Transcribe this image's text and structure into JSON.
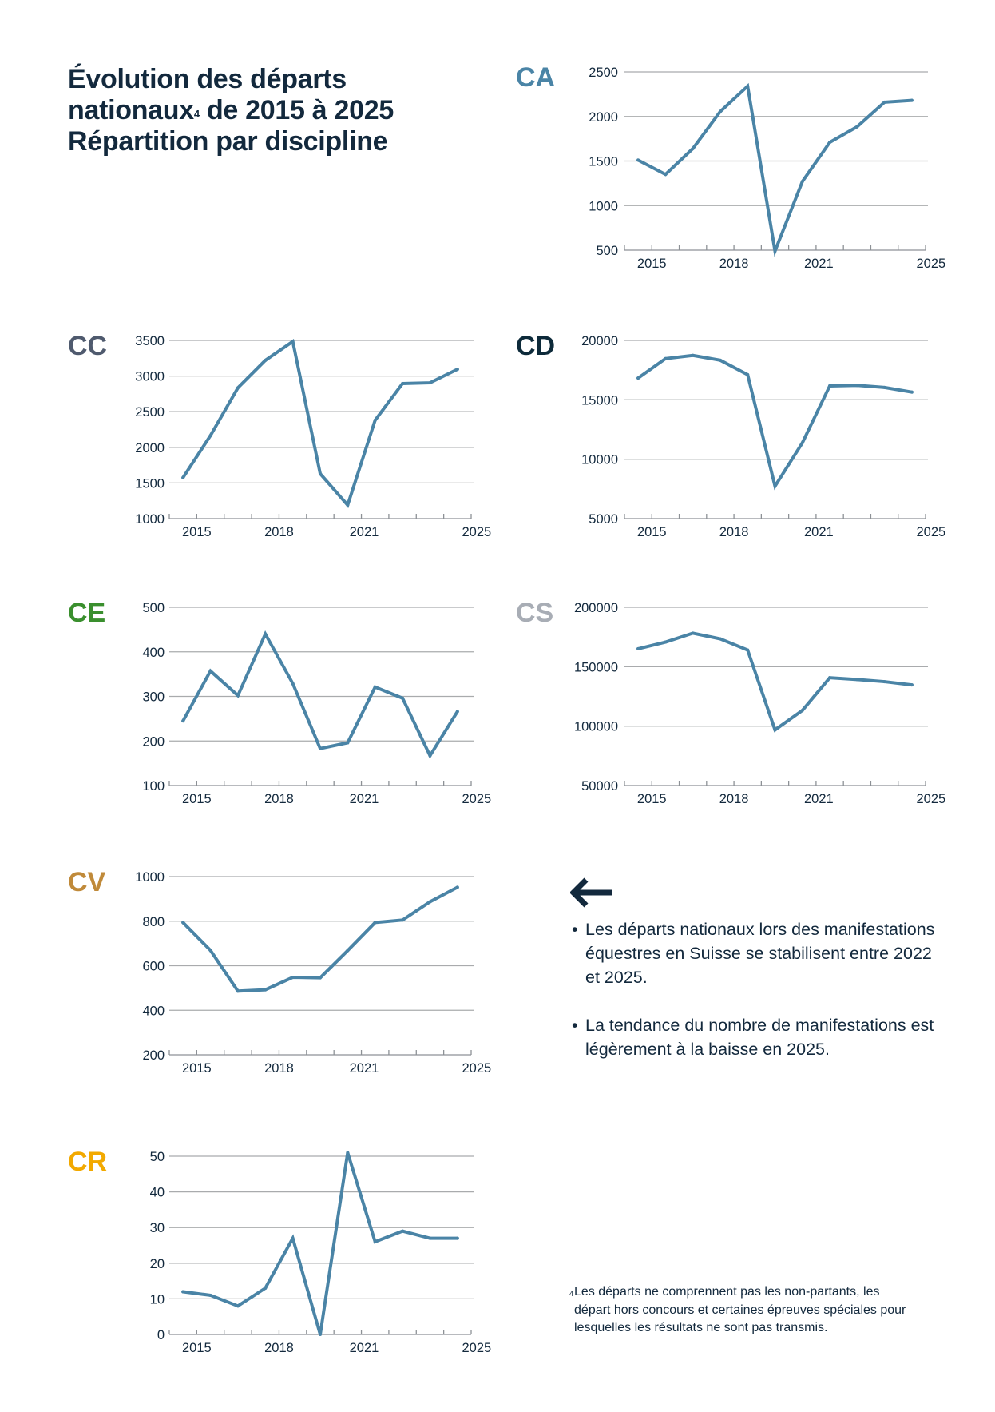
{
  "title": {
    "line1": "Évolution des départs",
    "line2_a": "nationaux",
    "line2_sup": "4",
    "line2_b": " de 2015 à 2025",
    "line3": "Répartition par discipline"
  },
  "line_color": "#4a84a6",
  "chart_data": [
    {
      "type": "line",
      "label": "CA",
      "label_color": "#4a84a6",
      "x": [
        2015,
        2016,
        2017,
        2018,
        2019,
        2020,
        2021,
        2022,
        2023,
        2024,
        2025
      ],
      "xtick_labels": [
        "2015",
        "2018",
        "2021",
        "2025"
      ],
      "yticks": [
        "500",
        "1000",
        "1500",
        "2000",
        "2500"
      ],
      "ylim": [
        500,
        2500
      ],
      "values": [
        1510,
        1350,
        1640,
        2055,
        2340,
        490,
        1270,
        1710,
        1885,
        2160,
        2180
      ],
      "grid": true
    },
    {
      "type": "line",
      "label": "CC",
      "label_color": "#4f5a6e",
      "x": [
        2015,
        2016,
        2017,
        2018,
        2019,
        2020,
        2021,
        2022,
        2023,
        2024,
        2025
      ],
      "xtick_labels": [
        "2015",
        "2018",
        "2021",
        "2025"
      ],
      "yticks": [
        "1000",
        "1500",
        "2000",
        "2500",
        "3000",
        "3500"
      ],
      "ylim": [
        1000,
        3500
      ],
      "values": [
        1575,
        2165,
        2835,
        3220,
        3485,
        1630,
        1190,
        2380,
        2895,
        2905,
        3095
      ],
      "grid": true
    },
    {
      "type": "line",
      "label": "CD",
      "label_color": "#0d2a3a",
      "x": [
        2015,
        2016,
        2017,
        2018,
        2019,
        2020,
        2021,
        2022,
        2023,
        2024,
        2025
      ],
      "xtick_labels": [
        "2015",
        "2018",
        "2021",
        "2025"
      ],
      "yticks": [
        "5000",
        "10000",
        "15000",
        "20000"
      ],
      "ylim": [
        5000,
        20000
      ],
      "values": [
        16830,
        18470,
        18740,
        18330,
        17120,
        7730,
        11380,
        16170,
        16220,
        16040,
        15650
      ],
      "grid": true
    },
    {
      "type": "line",
      "label": "CE",
      "label_color": "#3a8f2e",
      "x": [
        2015,
        2016,
        2017,
        2018,
        2019,
        2020,
        2021,
        2022,
        2023,
        2024,
        2025
      ],
      "xtick_labels": [
        "2015",
        "2018",
        "2021",
        "2025"
      ],
      "yticks": [
        "100",
        "200",
        "300",
        "400",
        "500"
      ],
      "ylim": [
        100,
        500
      ],
      "values": [
        245,
        357,
        302,
        440,
        329,
        183,
        196,
        321,
        296,
        167,
        266
      ],
      "grid": true
    },
    {
      "type": "line",
      "label": "CS",
      "label_color": "#a8adb5",
      "x": [
        2015,
        2016,
        2017,
        2018,
        2019,
        2020,
        2021,
        2022,
        2023,
        2024,
        2025
      ],
      "xtick_labels": [
        "2015",
        "2018",
        "2021",
        "2025"
      ],
      "yticks": [
        "50000",
        "100000",
        "150000",
        "200000"
      ],
      "ylim": [
        50000,
        200000
      ],
      "values": [
        165100,
        170700,
        178200,
        173400,
        164000,
        96800,
        113200,
        140700,
        139200,
        137400,
        134700
      ],
      "grid": true
    },
    {
      "type": "line",
      "label": "CV",
      "label_color": "#c08a3a",
      "x": [
        2015,
        2016,
        2017,
        2018,
        2019,
        2020,
        2021,
        2022,
        2023,
        2024,
        2025
      ],
      "xtick_labels": [
        "2015",
        "2018",
        "2021",
        "2025"
      ],
      "yticks": [
        "200",
        "400",
        "600",
        "800",
        "1000"
      ],
      "ylim": [
        200,
        1000
      ],
      "values": [
        794,
        669,
        486,
        492,
        548,
        546,
        668,
        794,
        805,
        887,
        952
      ],
      "grid": true
    },
    {
      "type": "line",
      "label": "CR",
      "label_color": "#f2a900",
      "x": [
        2015,
        2016,
        2017,
        2018,
        2019,
        2020,
        2021,
        2022,
        2023,
        2024,
        2025
      ],
      "xtick_labels": [
        "2015",
        "2018",
        "2021",
        "2025"
      ],
      "yticks": [
        "0",
        "10",
        "20",
        "30",
        "40",
        "50"
      ],
      "ylim": [
        0,
        50
      ],
      "values": [
        12,
        11,
        8,
        13,
        27,
        0,
        51,
        26,
        29,
        27,
        27
      ],
      "grid": true
    }
  ],
  "arrow_icon": "arrow-left-icon",
  "bullets": [
    {
      "dot": "•",
      "text": "Les départs nationaux lors des manifestations équestres en Suisse se stabilisent entre 2022 et 2025."
    },
    {
      "dot": "•",
      "text": "La tendance du nombre de manifestations est légèrement à la baisse en 2025."
    }
  ],
  "footnote": {
    "marker": "4",
    "text": "Les départs ne comprennent pas les non-partants, les départ hors concours et certaines épreuves spéciales pour lesquelles les résultats ne sont pas transmis."
  }
}
